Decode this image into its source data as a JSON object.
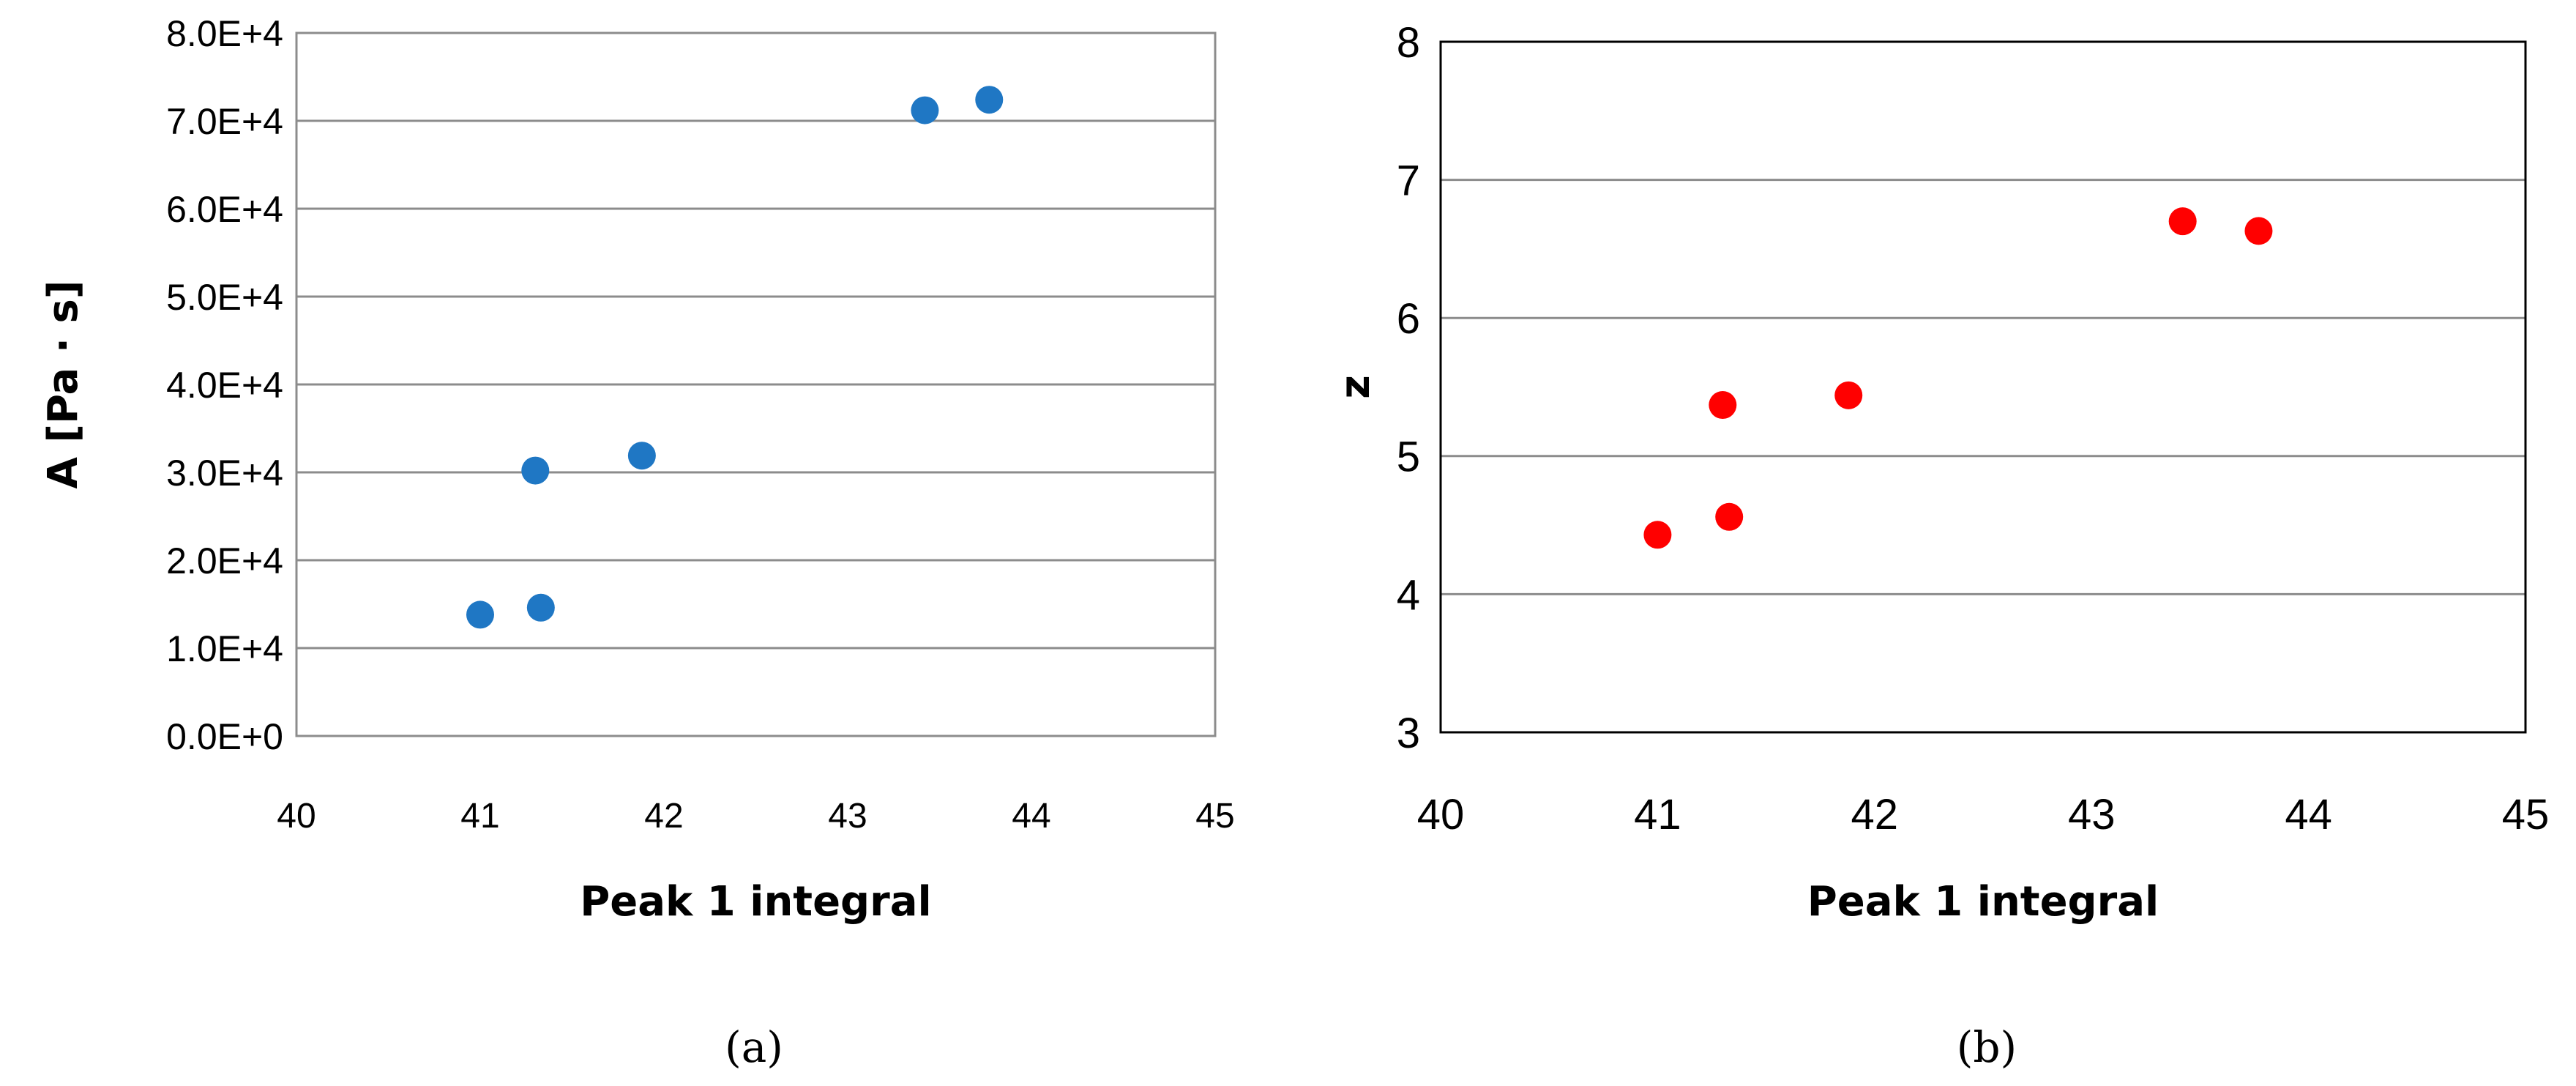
{
  "chart_data": [
    {
      "type": "scatter",
      "panel_label": "(a)",
      "xlabel": "Peak 1 integral",
      "ylabel": "A [Pa · s]",
      "xlim": [
        40,
        45
      ],
      "ylim": [
        0,
        80000
      ],
      "x_ticks": [
        40,
        41,
        42,
        43,
        44,
        45
      ],
      "x_tick_labels": [
        "40",
        "41",
        "42",
        "43",
        "44",
        "45"
      ],
      "y_ticks": [
        0,
        10000,
        20000,
        30000,
        40000,
        50000,
        60000,
        70000,
        80000
      ],
      "y_tick_labels": [
        "0.0E+0",
        "1.0E+4",
        "2.0E+4",
        "3.0E+4",
        "4.0E+4",
        "5.0E+4",
        "6.0E+4",
        "7.0E+4",
        "8.0E+4"
      ],
      "grid": "horizontal",
      "legend": "none",
      "color": "#1f77c4",
      "points": [
        {
          "x": 41.0,
          "y": 13800
        },
        {
          "x": 41.3,
          "y": 30200
        },
        {
          "x": 41.33,
          "y": 14600
        },
        {
          "x": 41.88,
          "y": 31900
        },
        {
          "x": 43.42,
          "y": 71200
        },
        {
          "x": 43.77,
          "y": 72400
        }
      ]
    },
    {
      "type": "scatter",
      "panel_label": "(b)",
      "xlabel": "Peak 1 integral",
      "ylabel": "z",
      "xlim": [
        40,
        45
      ],
      "ylim": [
        3,
        8
      ],
      "x_ticks": [
        40,
        41,
        42,
        43,
        44,
        45
      ],
      "x_tick_labels": [
        "40",
        "41",
        "42",
        "43",
        "44",
        "45"
      ],
      "y_ticks": [
        3,
        4,
        5,
        6,
        7,
        8
      ],
      "y_tick_labels": [
        "3",
        "4",
        "5",
        "6",
        "7",
        "8"
      ],
      "grid": "horizontal",
      "legend": "none",
      "color": "#ff0000",
      "points": [
        {
          "x": 41.0,
          "y": 4.43
        },
        {
          "x": 41.3,
          "y": 5.37
        },
        {
          "x": 41.33,
          "y": 4.56
        },
        {
          "x": 41.88,
          "y": 5.44
        },
        {
          "x": 43.42,
          "y": 6.7
        },
        {
          "x": 43.77,
          "y": 6.63
        }
      ]
    }
  ]
}
